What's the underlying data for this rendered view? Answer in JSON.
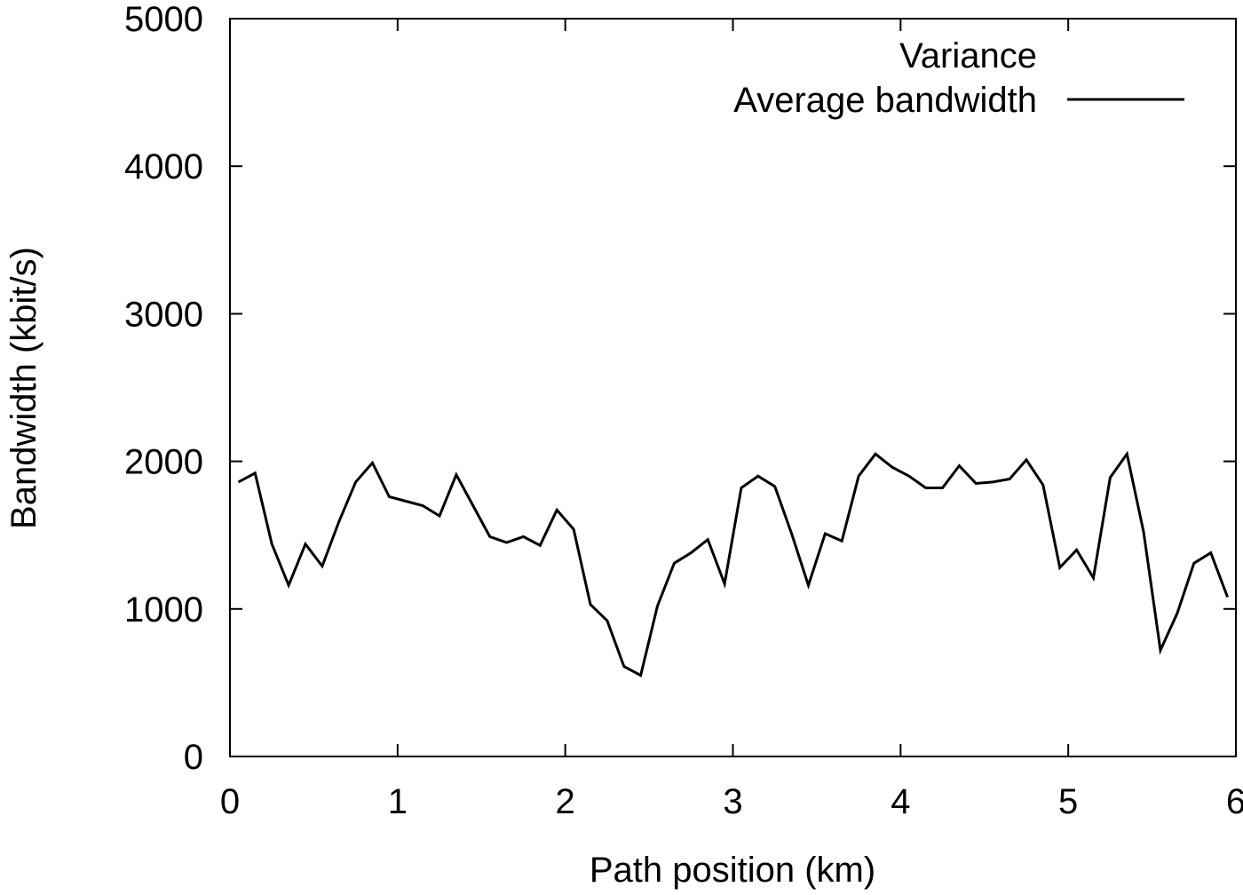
{
  "chart_data": {
    "type": "line",
    "title": "",
    "xlabel": "Path position (km)",
    "ylabel": "Bandwidth (kbit/s)",
    "xlim": [
      0,
      6
    ],
    "ylim": [
      0,
      5000
    ],
    "x_ticks": [
      "0",
      "1",
      "2",
      "3",
      "4",
      "5",
      "6"
    ],
    "y_ticks": [
      "0",
      "1000",
      "2000",
      "3000",
      "4000",
      "5000"
    ],
    "grid": false,
    "legend_position": "top-right",
    "series": [
      {
        "name": "Variance",
        "style": "none",
        "x": [],
        "y": []
      },
      {
        "name": "Average bandwidth",
        "style": "solid",
        "color": "#000000",
        "x": [
          0.05,
          0.15,
          0.25,
          0.35,
          0.45,
          0.55,
          0.65,
          0.75,
          0.85,
          0.95,
          1.05,
          1.15,
          1.25,
          1.35,
          1.45,
          1.55,
          1.65,
          1.75,
          1.85,
          1.95,
          2.05,
          2.15,
          2.25,
          2.35,
          2.45,
          2.55,
          2.65,
          2.75,
          2.85,
          2.95,
          3.05,
          3.15,
          3.25,
          3.35,
          3.45,
          3.55,
          3.65,
          3.75,
          3.85,
          3.95,
          4.05,
          4.15,
          4.25,
          4.35,
          4.45,
          4.55,
          4.65,
          4.75,
          4.85,
          4.95,
          5.05,
          5.15,
          5.25,
          5.35,
          5.45,
          5.55,
          5.65,
          5.75,
          5.85,
          5.95
        ],
        "y": [
          1860,
          1920,
          1440,
          1160,
          1440,
          1290,
          1590,
          1860,
          1990,
          1760,
          1730,
          1700,
          1630,
          1910,
          1700,
          1490,
          1450,
          1490,
          1430,
          1670,
          1540,
          1030,
          920,
          610,
          550,
          1020,
          1310,
          1380,
          1470,
          1170,
          1820,
          1900,
          1830,
          1510,
          1160,
          1510,
          1460,
          1900,
          2050,
          1960,
          1900,
          1820,
          1820,
          1970,
          1850,
          1860,
          1880,
          2010,
          1840,
          1280,
          1400,
          1210,
          1890,
          2050,
          1520,
          720,
          970,
          1310,
          1380,
          1080
        ]
      }
    ]
  }
}
